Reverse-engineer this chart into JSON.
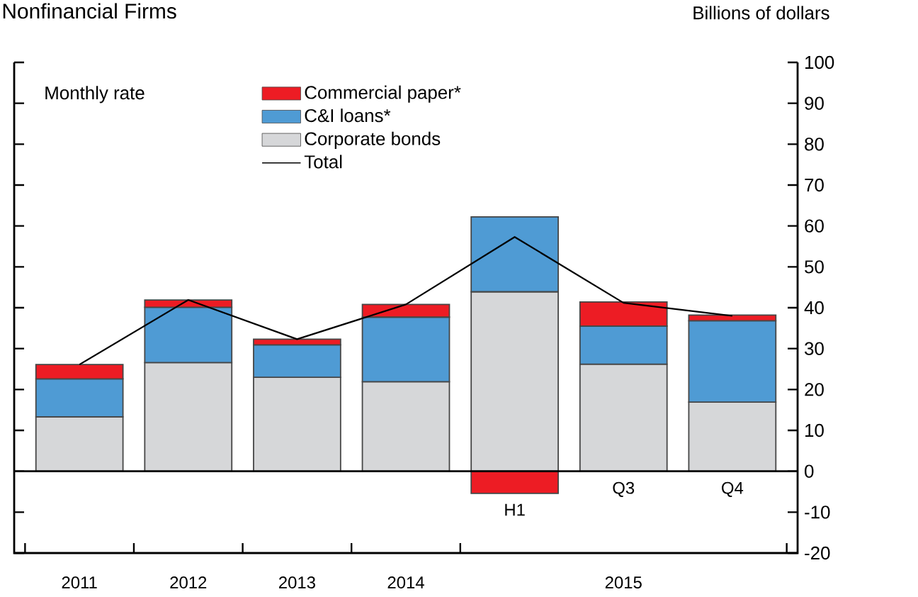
{
  "chart_data": {
    "type": "bar",
    "title": "Nonfinancial Firms",
    "ylabel": "Billions of dollars",
    "annotations": [
      "Monthly rate",
      "2015"
    ],
    "categories": [
      "2011",
      "2012",
      "2013",
      "2014",
      "H1",
      "Q3",
      "Q4"
    ],
    "stacked": true,
    "series": [
      {
        "name": "Corporate bonds",
        "color": "#d6d7d9",
        "values": [
          13.3,
          26.6,
          23.0,
          21.9,
          43.9,
          26.2,
          16.9
        ]
      },
      {
        "name": "C&I loans*",
        "color": "#4f9bd4",
        "values": [
          9.3,
          13.5,
          7.9,
          15.8,
          18.3,
          9.3,
          19.9
        ]
      },
      {
        "name": "Commercial paper*",
        "color": "#ed1c24",
        "values": [
          3.5,
          1.8,
          1.4,
          3.1,
          -5.4,
          5.9,
          1.4
        ]
      },
      {
        "name": "Total",
        "type": "line",
        "color": "#000000",
        "values": [
          26.1,
          41.9,
          32.3,
          40.8,
          57.3,
          41.2,
          38.0
        ]
      }
    ],
    "ylim": [
      -20,
      100
    ],
    "yticks": [
      -20,
      -10,
      0,
      10,
      20,
      30,
      40,
      50,
      60,
      70,
      80,
      90,
      100
    ],
    "ref_lines": [
      {
        "axis": "y",
        "value": 0
      }
    ],
    "legend": "top"
  }
}
